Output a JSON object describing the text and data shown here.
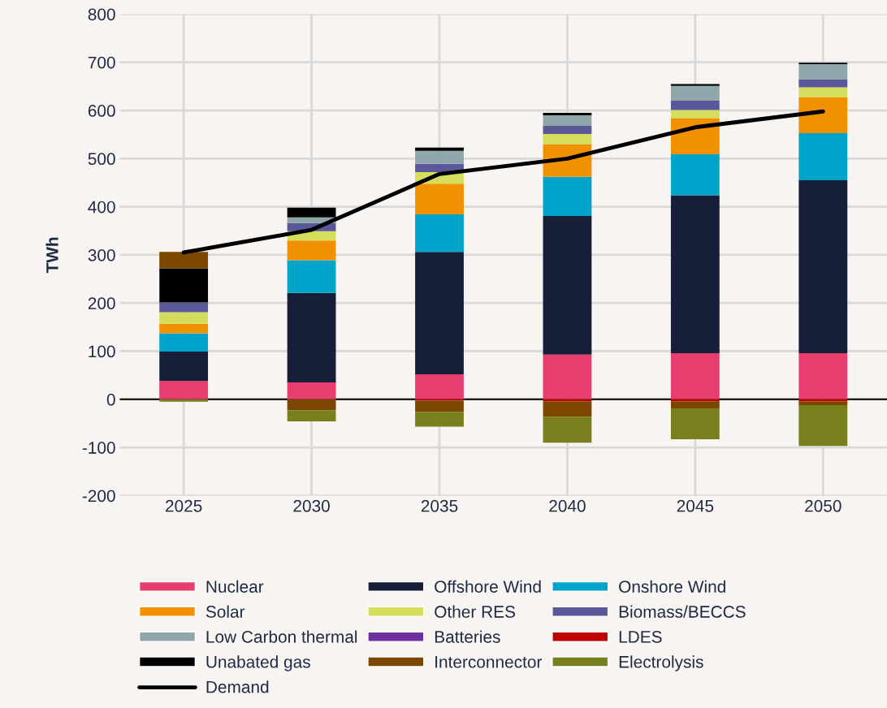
{
  "chart_data": {
    "type": "bar",
    "stacked": true,
    "ylabel": "TWh",
    "categories": [
      "2025",
      "2030",
      "2035",
      "2040",
      "2045",
      "2050"
    ],
    "ylim": [
      -200,
      800
    ],
    "yticks": [
      -200,
      -100,
      0,
      100,
      200,
      300,
      400,
      500,
      600,
      700,
      800
    ],
    "grid": true,
    "legend": "bottom",
    "ref_lines": [
      {
        "axis": "y",
        "value": 0,
        "color": "#000000"
      }
    ],
    "series": [
      {
        "name": "Nuclear",
        "color": "#e83e6f",
        "values": [
          38,
          35,
          52,
          93,
          96,
          96
        ]
      },
      {
        "name": "Offshore Wind",
        "color": "#161f37",
        "values": [
          61,
          186,
          254,
          288,
          328,
          359
        ]
      },
      {
        "name": "Onshore Wind",
        "color": "#00a3c9",
        "values": [
          38,
          68,
          78,
          81,
          85,
          98
        ]
      },
      {
        "name": "Solar",
        "color": "#f29100",
        "values": [
          20,
          41,
          64,
          68,
          75,
          75
        ]
      },
      {
        "name": "Other RES",
        "color": "#d4dd5c",
        "values": [
          24,
          19,
          24,
          21,
          17,
          20
        ]
      },
      {
        "name": "Biomass/BECCS",
        "color": "#5a5898",
        "values": [
          20,
          17,
          17,
          17,
          20,
          17
        ]
      },
      {
        "name": "Low Carbon thermal",
        "color": "#8fa7ab",
        "values": [
          0,
          12,
          27,
          22,
          30,
          31
        ]
      },
      {
        "name": "Batteries",
        "color": "#7030a0",
        "values": [
          0,
          0,
          0,
          0,
          0,
          0
        ]
      },
      {
        "name": "LDES",
        "color": "#c00000",
        "values": [
          0,
          0,
          -3,
          -4,
          -4,
          -4
        ]
      },
      {
        "name": "Unabated gas",
        "color": "#000000",
        "values": [
          71,
          20,
          7,
          5,
          4,
          3
        ]
      },
      {
        "name": "Interconnector",
        "color": "#7a4600",
        "values": [
          34,
          -23,
          -23,
          -32,
          -15,
          -8
        ]
      },
      {
        "name": "Electrolysis",
        "color": "#7a7f1e",
        "values": [
          -5,
          -23,
          -31,
          -54,
          -64,
          -85
        ]
      },
      {
        "name": "Demand",
        "type": "line",
        "color": "#000000",
        "values": [
          305,
          352,
          468,
          500,
          565,
          598
        ]
      }
    ]
  }
}
